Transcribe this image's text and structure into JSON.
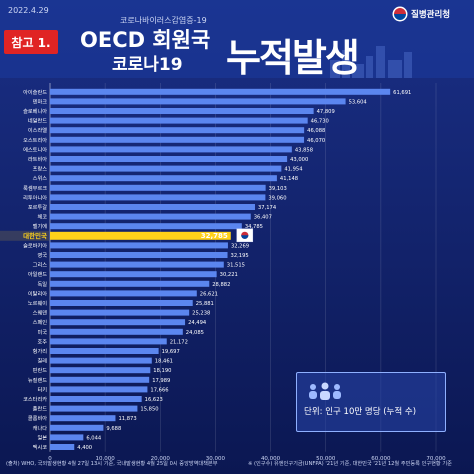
{
  "header": {
    "date": "2022.4.29",
    "subtitle": "코로나바이러스감염증-19",
    "badge": "참고 1.",
    "title_line1": "OECD 회원국",
    "title_line2": "코로나19",
    "title_big": "누적발생",
    "org": "질병관리청"
  },
  "unit_label": "단위: 인구 10만 명당 (누적 수)",
  "footnote_source": "(출처) WHO, 국외발생현황 4월 27일 13시 기준, 국내발생현황 4월 25일 0시 중앙방역대책본부",
  "footnote_population": "※ (인구수) 유엔인구기금(UNFPA) '21년 기준, 대한민국 '21년 12월 주민등록 인구현황 기준",
  "colors": {
    "background": "#0e1d5c",
    "bar": "#5b86ef",
    "highlight_bar": "#ffd21a",
    "highlight_label": "#ffd21a",
    "badge": "#e02424"
  },
  "chart_data": {
    "type": "bar",
    "orientation": "horizontal",
    "title": "OECD 회원국 코로나19 누적발생",
    "unit": "단위: 인구 10만 명당 (누적 수)",
    "xlim": [
      0,
      70000
    ],
    "xticks": [
      "0",
      "10,000",
      "20,000",
      "30,000",
      "40,000",
      "50,000",
      "60,000",
      "70,000"
    ],
    "grid": true,
    "highlight": "대한민국",
    "categories": [
      "아이슬란드",
      "덴마크",
      "슬로베니아",
      "네덜란드",
      "이스라엘",
      "오스트리아",
      "에스토니아",
      "라트비아",
      "프랑스",
      "스위스",
      "룩셈부르크",
      "리투아니아",
      "포르투갈",
      "체코",
      "벨기에",
      "대한민국",
      "슬로바키아",
      "영국",
      "그리스",
      "아일랜드",
      "독일",
      "이탈리아",
      "노르웨이",
      "스웨덴",
      "스페인",
      "미국",
      "호주",
      "헝가리",
      "칠레",
      "핀란드",
      "뉴질랜드",
      "터키",
      "코스타리카",
      "폴란드",
      "콜롬비아",
      "캐나다",
      "일본",
      "멕시코"
    ],
    "values": [
      61691,
      53604,
      47809,
      46730,
      46088,
      46070,
      43858,
      43000,
      41954,
      41148,
      39103,
      39060,
      37174,
      36407,
      34785,
      32785,
      32269,
      32195,
      31515,
      30221,
      28882,
      26621,
      25881,
      25238,
      24494,
      24085,
      21172,
      19697,
      18461,
      18190,
      17989,
      17666,
      16623,
      15850,
      11873,
      9688,
      6044,
      4400
    ],
    "value_labels": [
      "61,691",
      "53,604",
      "47,809",
      "46,730",
      "46,088",
      "46,070",
      "43,858",
      "43,000",
      "41,954",
      "41,148",
      "39,103",
      "39,060",
      "37,174",
      "36,407",
      "34,785",
      "32,785",
      "32,269",
      "32,195",
      "31,515",
      "30,221",
      "28,882",
      "26,621",
      "25,881",
      "25,238",
      "24,494",
      "24,085",
      "21,172",
      "19,697",
      "18,461",
      "18,190",
      "17,989",
      "17,666",
      "16,623",
      "15,850",
      "11,873",
      "9,688",
      "6,044",
      "4,400"
    ]
  }
}
